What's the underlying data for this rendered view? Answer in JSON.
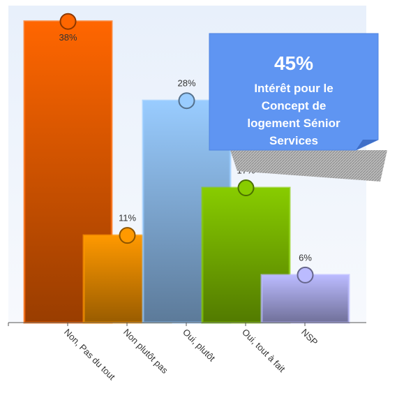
{
  "chart_data": {
    "type": "bar",
    "categories": [
      "Non, Pas du tout",
      "Non plutôt pas",
      "Oui, plutôt",
      "Oui, tout à fait",
      "NSP"
    ],
    "values": [
      38,
      11,
      28,
      17,
      6
    ],
    "value_labels": [
      "38%",
      "11%",
      "28%",
      "17%",
      "6%"
    ],
    "colors": [
      "#ff6600",
      "#ff9900",
      "#99ccff",
      "#88cc00",
      "#bbbbff"
    ],
    "ylim": [
      0,
      40
    ],
    "annotation": {
      "value": "45%",
      "text": [
        "Intérêt pour le",
        "Concept de",
        "logement Sénior",
        "Services"
      ]
    }
  }
}
